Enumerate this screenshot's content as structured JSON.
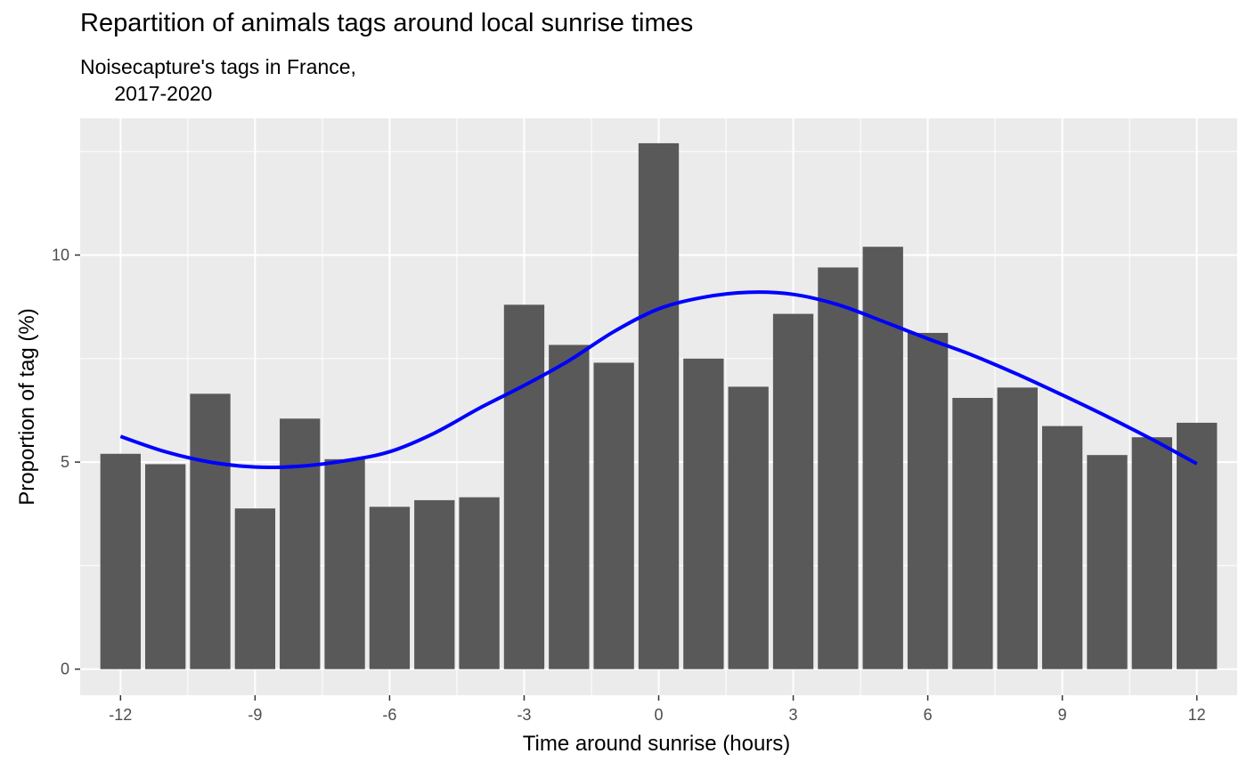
{
  "chart_data": {
    "type": "bar",
    "title": "Repartition of animals tags around local sunrise times",
    "subtitle": "Noisecapture's tags in France,\n      2017-2020",
    "xlabel": "Time around sunrise (hours)",
    "ylabel": "Proportion of tag (%)",
    "x": [
      -12,
      -11,
      -10,
      -9,
      -8,
      -7,
      -6,
      -5,
      -4,
      -3,
      -2,
      -1,
      0,
      1,
      2,
      3,
      4,
      5,
      6,
      7,
      8,
      9,
      10,
      11,
      12
    ],
    "values": [
      5.2,
      4.95,
      6.65,
      3.88,
      6.05,
      5.07,
      3.92,
      4.08,
      4.15,
      8.8,
      7.83,
      7.4,
      12.7,
      7.5,
      6.82,
      8.58,
      9.7,
      10.2,
      8.12,
      6.55,
      6.8,
      5.87,
      5.17,
      5.6,
      5.95
    ],
    "smooth": {
      "color": "#0000ff",
      "x": [
        -12,
        -11,
        -10,
        -9,
        -8,
        -7,
        -6,
        -5,
        -4,
        -3,
        -2,
        -1,
        0,
        1,
        2,
        3,
        4,
        5,
        6,
        7,
        8,
        9,
        10,
        11,
        12
      ],
      "y": [
        5.62,
        5.25,
        5.0,
        4.88,
        4.9,
        5.03,
        5.25,
        5.7,
        6.3,
        6.85,
        7.45,
        8.15,
        8.7,
        8.98,
        9.1,
        9.05,
        8.8,
        8.4,
        7.98,
        7.58,
        7.12,
        6.62,
        6.1,
        5.55,
        4.96
      ]
    },
    "xticks": [
      -12,
      -9,
      -6,
      -3,
      0,
      3,
      6,
      9,
      12
    ],
    "yticks": [
      0,
      5,
      10
    ],
    "xlim": [
      -12.9,
      12.9
    ],
    "ylim": [
      -0.63,
      13.3
    ],
    "bar_color": "#595959",
    "panel_color": "#ebebeb",
    "grid": true
  }
}
